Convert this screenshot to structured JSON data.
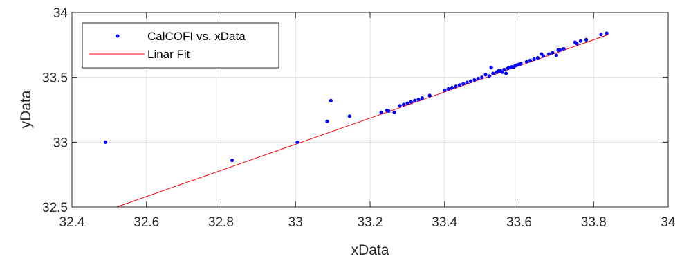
{
  "chart_data": {
    "type": "scatter",
    "title": "",
    "xlabel": "xData",
    "ylabel": "yData",
    "xlim": [
      32.4,
      34
    ],
    "ylim": [
      32.5,
      34
    ],
    "x_ticks": [
      "32.4",
      "32.6",
      "32.8",
      "33",
      "33.2",
      "33.4",
      "33.6",
      "33.8",
      "34"
    ],
    "y_ticks": [
      "32.5",
      "33",
      "33.5",
      "34"
    ],
    "grid": true,
    "legend_position": "top-left",
    "series": [
      {
        "name": "CalCOFI vs. xData",
        "kind": "points",
        "color": "#0000ff",
        "points": [
          [
            32.49,
            33.0
          ],
          [
            32.83,
            32.86
          ],
          [
            33.005,
            33.0
          ],
          [
            33.085,
            33.16
          ],
          [
            33.095,
            33.32
          ],
          [
            33.145,
            33.2
          ],
          [
            33.23,
            33.23
          ],
          [
            33.245,
            33.245
          ],
          [
            33.25,
            33.24
          ],
          [
            33.265,
            33.23
          ],
          [
            33.28,
            33.28
          ],
          [
            33.29,
            33.29
          ],
          [
            33.3,
            33.3
          ],
          [
            33.31,
            33.31
          ],
          [
            33.32,
            33.32
          ],
          [
            33.33,
            33.33
          ],
          [
            33.34,
            33.34
          ],
          [
            33.36,
            33.36
          ],
          [
            33.4,
            33.4
          ],
          [
            33.41,
            33.41
          ],
          [
            33.42,
            33.42
          ],
          [
            33.43,
            33.43
          ],
          [
            33.44,
            33.44
          ],
          [
            33.45,
            33.45
          ],
          [
            33.46,
            33.46
          ],
          [
            33.47,
            33.47
          ],
          [
            33.48,
            33.48
          ],
          [
            33.49,
            33.49
          ],
          [
            33.5,
            33.5
          ],
          [
            33.51,
            33.52
          ],
          [
            33.52,
            33.51
          ],
          [
            33.525,
            33.575
          ],
          [
            33.53,
            33.53
          ],
          [
            33.54,
            33.54
          ],
          [
            33.545,
            33.55
          ],
          [
            33.55,
            33.55
          ],
          [
            33.555,
            33.54
          ],
          [
            33.56,
            33.56
          ],
          [
            33.565,
            33.53
          ],
          [
            33.57,
            33.57
          ],
          [
            33.575,
            33.575
          ],
          [
            33.58,
            33.58
          ],
          [
            33.585,
            33.58
          ],
          [
            33.59,
            33.59
          ],
          [
            33.595,
            33.595
          ],
          [
            33.6,
            33.6
          ],
          [
            33.605,
            33.605
          ],
          [
            33.62,
            33.62
          ],
          [
            33.63,
            33.63
          ],
          [
            33.64,
            33.64
          ],
          [
            33.65,
            33.65
          ],
          [
            33.66,
            33.68
          ],
          [
            33.665,
            33.665
          ],
          [
            33.68,
            33.68
          ],
          [
            33.69,
            33.69
          ],
          [
            33.7,
            33.67
          ],
          [
            33.705,
            33.71
          ],
          [
            33.71,
            33.71
          ],
          [
            33.72,
            33.72
          ],
          [
            33.75,
            33.77
          ],
          [
            33.755,
            33.76
          ],
          [
            33.765,
            33.78
          ],
          [
            33.78,
            33.79
          ],
          [
            33.82,
            33.83
          ],
          [
            33.835,
            33.84
          ]
        ]
      },
      {
        "name": "Linar Fit",
        "kind": "line",
        "color": "#ff0000",
        "points": [
          [
            32.5,
            32.48
          ],
          [
            33.84,
            33.83
          ]
        ]
      }
    ]
  }
}
